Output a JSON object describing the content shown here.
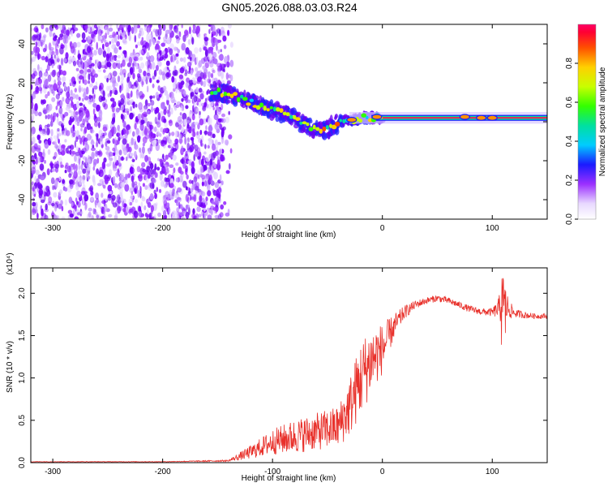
{
  "title": "GN05.2026.088.03.03.R24",
  "chart_data": [
    {
      "type": "heatmap",
      "name": "spectrogram",
      "xlabel": "Height of straight line (km)",
      "ylabel": "Frequency (Hz)",
      "xlim": [
        -320,
        150
      ],
      "ylim": [
        -50,
        50
      ],
      "xticks": [
        -300,
        -200,
        -100,
        0,
        100
      ],
      "yticks": [
        -40,
        -20,
        0,
        20,
        40
      ],
      "noise_region_km": [
        -320,
        -145
      ],
      "signal_track": {
        "x": [
          -155,
          -140,
          -120,
          -100,
          -85,
          -70,
          -55,
          -45,
          -35,
          -25,
          -15,
          0,
          20,
          60,
          80,
          100,
          150
        ],
        "freq": [
          16,
          14,
          10,
          6,
          3,
          -2,
          -5,
          -2,
          1,
          1,
          2,
          2,
          2,
          2,
          3,
          2,
          2
        ]
      },
      "colorbar": {
        "label": "Normalized spectral amplitude",
        "range": [
          0,
          1
        ],
        "ticks": [
          0.0,
          0.2,
          0.4,
          0.6,
          0.8
        ]
      }
    },
    {
      "type": "line",
      "name": "snr",
      "xlabel": "Height of straight line (km)",
      "ylabel": "SNR (10 * v/v)",
      "y_scale_label": "(x10⁴)",
      "xlim": [
        -320,
        150
      ],
      "ylim": [
        0,
        2.3
      ],
      "xticks": [
        -300,
        -200,
        -100,
        0,
        100
      ],
      "yticks": [
        0.0,
        0.5,
        1.0,
        1.5,
        2.0
      ],
      "color": "#e8302a",
      "envelope": {
        "x": [
          -320,
          -200,
          -140,
          -120,
          -100,
          -80,
          -60,
          -40,
          -30,
          -20,
          -10,
          0,
          10,
          20,
          30,
          40,
          50,
          60,
          70,
          80,
          90,
          100,
          105,
          110,
          115,
          120,
          130,
          140,
          150
        ],
        "y": [
          0.01,
          0.01,
          0.02,
          0.1,
          0.2,
          0.25,
          0.3,
          0.35,
          0.55,
          0.85,
          1.1,
          1.25,
          1.55,
          1.75,
          1.85,
          1.9,
          1.93,
          1.9,
          1.85,
          1.8,
          1.77,
          1.76,
          1.78,
          1.8,
          1.78,
          1.75,
          1.73,
          1.72,
          1.72
        ],
        "amp": [
          0.003,
          0.003,
          0.01,
          0.08,
          0.15,
          0.2,
          0.22,
          0.25,
          0.35,
          0.45,
          0.4,
          0.3,
          0.15,
          0.08,
          0.05,
          0.04,
          0.04,
          0.04,
          0.04,
          0.04,
          0.04,
          0.05,
          0.1,
          0.3,
          0.12,
          0.05,
          0.04,
          0.03,
          0.03
        ]
      }
    }
  ]
}
